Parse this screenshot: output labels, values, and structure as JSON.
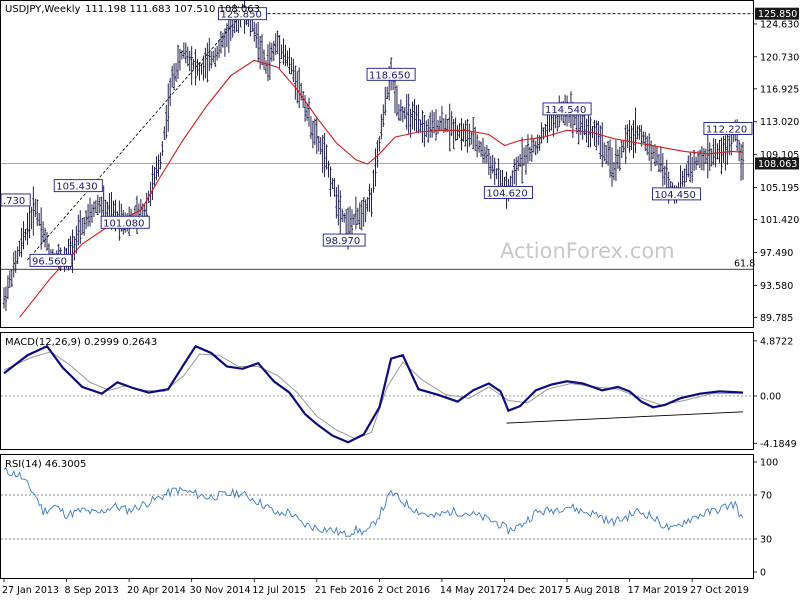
{
  "chart_data": [
    {
      "type": "ohlc",
      "header": "USDJPY,Weekly",
      "ohlc_readout": "111.198 111.683 107.510 108.063",
      "watermark": "ActionForex.com",
      "yticks": [
        "124.630",
        "120.730",
        "116.925",
        "113.020",
        "109.105",
        "105.195",
        "101.420",
        "97.490",
        "93.580",
        "89.785"
      ],
      "ytick_values": [
        124.63,
        120.73,
        116.925,
        113.02,
        109.105,
        105.195,
        101.42,
        97.49,
        93.58,
        89.785
      ],
      "ylim": [
        89.0,
        127.0
      ],
      "last_price": "108.063",
      "last_price_value": 108.063,
      "top_marker": "125.850",
      "top_marker_value": 125.85,
      "fib_label": "61.8",
      "fib_value": 95.5,
      "xticks": [
        "27 Jan 2013",
        "8 Sep 2013",
        "20 Apr 2014",
        "30 Nov 2014",
        "12 Jul 2015",
        "21 Feb 2016",
        "2 Oct 2016",
        "14 May 2017",
        "24 Dec 2017",
        "5 Aug 2018",
        "17 Mar 2019",
        "27 Oct 2019"
      ],
      "xtick_index": [
        0,
        32,
        64,
        96,
        128,
        160,
        192,
        224,
        256,
        288,
        320,
        352
      ],
      "price_path": [
        [
          0,
          91.8
        ],
        [
          8,
          97.8
        ],
        [
          16,
          103.0
        ],
        [
          24,
          97.0
        ],
        [
          32,
          96.6
        ],
        [
          40,
          100.5
        ],
        [
          48,
          103.2
        ],
        [
          56,
          102.0
        ],
        [
          64,
          101.1
        ],
        [
          72,
          102.5
        ],
        [
          80,
          108.5
        ],
        [
          86,
          118.0
        ],
        [
          92,
          121.5
        ],
        [
          100,
          119.0
        ],
        [
          108,
          121.0
        ],
        [
          116,
          124.0
        ],
        [
          122,
          125.85
        ],
        [
          128,
          124.0
        ],
        [
          134,
          119.5
        ],
        [
          140,
          122.5
        ],
        [
          146,
          120.0
        ],
        [
          152,
          116.5
        ],
        [
          158,
          112.0
        ],
        [
          164,
          109.0
        ],
        [
          170,
          104.0
        ],
        [
          176,
          100.5
        ],
        [
          182,
          102.0
        ],
        [
          188,
          104.0
        ],
        [
          192,
          110.5
        ],
        [
          196,
          116.5
        ],
        [
          198,
          118.65
        ],
        [
          202,
          114.5
        ],
        [
          208,
          113.5
        ],
        [
          216,
          112.0
        ],
        [
          224,
          113.0
        ],
        [
          232,
          112.0
        ],
        [
          240,
          111.0
        ],
        [
          248,
          108.5
        ],
        [
          254,
          106.0
        ],
        [
          258,
          104.62
        ],
        [
          264,
          108.5
        ],
        [
          272,
          110.0
        ],
        [
          280,
          113.2
        ],
        [
          288,
          114.54
        ],
        [
          296,
          112.5
        ],
        [
          304,
          111.5
        ],
        [
          308,
          109.0
        ],
        [
          312,
          107.5
        ],
        [
          318,
          110.5
        ],
        [
          324,
          112.0
        ],
        [
          330,
          110.0
        ],
        [
          336,
          108.0
        ],
        [
          340,
          105.5
        ],
        [
          344,
          104.45
        ],
        [
          350,
          107.5
        ],
        [
          356,
          108.5
        ],
        [
          364,
          109.2
        ],
        [
          370,
          109.5
        ],
        [
          374,
          112.22
        ],
        [
          378,
          108.063
        ]
      ],
      "ma_path": [
        [
          8,
          89.8
        ],
        [
          24,
          94.5
        ],
        [
          40,
          98.5
        ],
        [
          56,
          101.0
        ],
        [
          70,
          102.5
        ],
        [
          80,
          106.5
        ],
        [
          92,
          111.0
        ],
        [
          104,
          115.0
        ],
        [
          116,
          118.5
        ],
        [
          128,
          120.3
        ],
        [
          140,
          119.5
        ],
        [
          150,
          116.8
        ],
        [
          160,
          113.5
        ],
        [
          170,
          110.5
        ],
        [
          180,
          108.5
        ],
        [
          186,
          108.0
        ],
        [
          192,
          109.2
        ],
        [
          200,
          111.2
        ],
        [
          212,
          111.8
        ],
        [
          224,
          112.0
        ],
        [
          236,
          112.0
        ],
        [
          248,
          111.5
        ],
        [
          256,
          110.2
        ],
        [
          264,
          110.8
        ],
        [
          276,
          111.2
        ],
        [
          288,
          112.0
        ],
        [
          300,
          111.8
        ],
        [
          312,
          111.0
        ],
        [
          324,
          110.5
        ],
        [
          336,
          110.0
        ],
        [
          348,
          109.5
        ],
        [
          360,
          109.2
        ],
        [
          372,
          109.5
        ],
        [
          378,
          109.4
        ]
      ],
      "annotations": [
        {
          "text": "125.850",
          "i": 122,
          "v": 125.85
        },
        {
          "text": "118.650",
          "i": 198,
          "v": 118.65
        },
        {
          "text": "114.540",
          "i": 288,
          "v": 114.54
        },
        {
          "text": "112.220",
          "i": 374,
          "v": 112.22
        },
        {
          "text": "105.430",
          "i": 38,
          "v": 105.43
        },
        {
          "text": "101.080",
          "i": 62,
          "v": 101.08
        },
        {
          "text": "96.560",
          "i": 24,
          "v": 96.56
        },
        {
          "text": "98.970",
          "i": 174,
          "v": 98.97
        },
        {
          "text": "104.620",
          "i": 258,
          "v": 104.62
        },
        {
          "text": "104.450",
          "i": 344,
          "v": 104.45
        },
        {
          "text": ".730",
          "i": 0,
          "v": 103.73
        }
      ]
    },
    {
      "type": "line",
      "header": "MACD(12,26,9) 0.2999 0.2643",
      "yticks": [
        "4.8722",
        "0.00",
        "-4.1849"
      ],
      "ytick_values": [
        4.8722,
        0.0,
        -4.1849
      ],
      "ylim": [
        -4.6,
        5.3
      ],
      "macd_path": [
        [
          0,
          2.0
        ],
        [
          12,
          3.6
        ],
        [
          22,
          4.4
        ],
        [
          30,
          2.5
        ],
        [
          40,
          0.8
        ],
        [
          50,
          0.2
        ],
        [
          58,
          1.2
        ],
        [
          66,
          0.7
        ],
        [
          74,
          0.3
        ],
        [
          84,
          0.6
        ],
        [
          92,
          2.8
        ],
        [
          98,
          4.4
        ],
        [
          106,
          3.8
        ],
        [
          114,
          2.6
        ],
        [
          122,
          2.4
        ],
        [
          130,
          2.9
        ],
        [
          138,
          1.3
        ],
        [
          146,
          0.3
        ],
        [
          154,
          -1.6
        ],
        [
          160,
          -2.5
        ],
        [
          168,
          -3.5
        ],
        [
          176,
          -4.1
        ],
        [
          184,
          -3.4
        ],
        [
          192,
          -1.0
        ],
        [
          198,
          3.3
        ],
        [
          204,
          3.6
        ],
        [
          212,
          0.6
        ],
        [
          222,
          0.1
        ],
        [
          232,
          -0.5
        ],
        [
          240,
          0.5
        ],
        [
          248,
          1.1
        ],
        [
          254,
          0.4
        ],
        [
          258,
          -1.3
        ],
        [
          264,
          -0.9
        ],
        [
          272,
          0.5
        ],
        [
          280,
          1.0
        ],
        [
          288,
          1.3
        ],
        [
          296,
          1.1
        ],
        [
          306,
          0.5
        ],
        [
          314,
          0.8
        ],
        [
          320,
          0.4
        ],
        [
          326,
          -0.5
        ],
        [
          332,
          -1.0
        ],
        [
          338,
          -0.8
        ],
        [
          346,
          -0.2
        ],
        [
          356,
          0.2
        ],
        [
          366,
          0.4
        ],
        [
          378,
          0.3
        ]
      ],
      "signal_path": [
        [
          0,
          2.3
        ],
        [
          14,
          3.4
        ],
        [
          24,
          3.9
        ],
        [
          34,
          2.7
        ],
        [
          44,
          1.2
        ],
        [
          54,
          0.5
        ],
        [
          62,
          0.9
        ],
        [
          72,
          0.5
        ],
        [
          82,
          0.4
        ],
        [
          92,
          1.8
        ],
        [
          100,
          3.7
        ],
        [
          110,
          3.6
        ],
        [
          120,
          2.6
        ],
        [
          130,
          2.6
        ],
        [
          140,
          1.8
        ],
        [
          150,
          0.3
        ],
        [
          160,
          -1.8
        ],
        [
          170,
          -3.0
        ],
        [
          180,
          -3.8
        ],
        [
          188,
          -3.2
        ],
        [
          196,
          0.8
        ],
        [
          204,
          3.0
        ],
        [
          214,
          1.4
        ],
        [
          226,
          0.1
        ],
        [
          238,
          -0.2
        ],
        [
          248,
          0.8
        ],
        [
          258,
          -0.4
        ],
        [
          268,
          -0.6
        ],
        [
          278,
          0.6
        ],
        [
          290,
          1.1
        ],
        [
          302,
          0.8
        ],
        [
          314,
          0.6
        ],
        [
          326,
          -0.2
        ],
        [
          336,
          -0.8
        ],
        [
          348,
          -0.4
        ],
        [
          362,
          0.2
        ],
        [
          378,
          0.26
        ]
      ],
      "support_line": [
        [
          257,
          -2.4
        ],
        [
          378,
          -1.4
        ]
      ]
    },
    {
      "type": "line",
      "header": "RSI(14) 46.3005",
      "yticks": [
        "100",
        "70",
        "30",
        "0"
      ],
      "ytick_values": [
        100,
        70,
        30,
        0
      ],
      "ylim": [
        0,
        100
      ],
      "rsi_path": [
        [
          0,
          92
        ],
        [
          8,
          88
        ],
        [
          16,
          70
        ],
        [
          20,
          55
        ],
        [
          26,
          60
        ],
        [
          32,
          52
        ],
        [
          40,
          56
        ],
        [
          48,
          53
        ],
        [
          56,
          60
        ],
        [
          64,
          56
        ],
        [
          72,
          62
        ],
        [
          80,
          68
        ],
        [
          88,
          75
        ],
        [
          96,
          72
        ],
        [
          104,
          68
        ],
        [
          112,
          70
        ],
        [
          120,
          72
        ],
        [
          128,
          66
        ],
        [
          134,
          60
        ],
        [
          140,
          52
        ],
        [
          146,
          55
        ],
        [
          152,
          44
        ],
        [
          160,
          40
        ],
        [
          168,
          38
        ],
        [
          174,
          34
        ],
        [
          180,
          38
        ],
        [
          186,
          36
        ],
        [
          192,
          52
        ],
        [
          198,
          72
        ],
        [
          204,
          64
        ],
        [
          212,
          55
        ],
        [
          220,
          50
        ],
        [
          228,
          55
        ],
        [
          236,
          54
        ],
        [
          244,
          50
        ],
        [
          252,
          45
        ],
        [
          258,
          38
        ],
        [
          264,
          42
        ],
        [
          272,
          54
        ],
        [
          280,
          56
        ],
        [
          288,
          60
        ],
        [
          296,
          55
        ],
        [
          304,
          52
        ],
        [
          310,
          45
        ],
        [
          316,
          48
        ],
        [
          324,
          55
        ],
        [
          330,
          52
        ],
        [
          336,
          44
        ],
        [
          342,
          38
        ],
        [
          348,
          46
        ],
        [
          356,
          52
        ],
        [
          364,
          56
        ],
        [
          370,
          60
        ],
        [
          374,
          62
        ],
        [
          378,
          46
        ]
      ]
    }
  ],
  "colors": {
    "price": "#0a0a3c",
    "ma": "#d81b1b",
    "macd": "#0c0c80",
    "signal": "#9a9a9a",
    "rsi": "#3a7ac8",
    "grid": "#666666",
    "label_border": "#1a1a8c",
    "marker_bg": "#1a1a1a"
  }
}
